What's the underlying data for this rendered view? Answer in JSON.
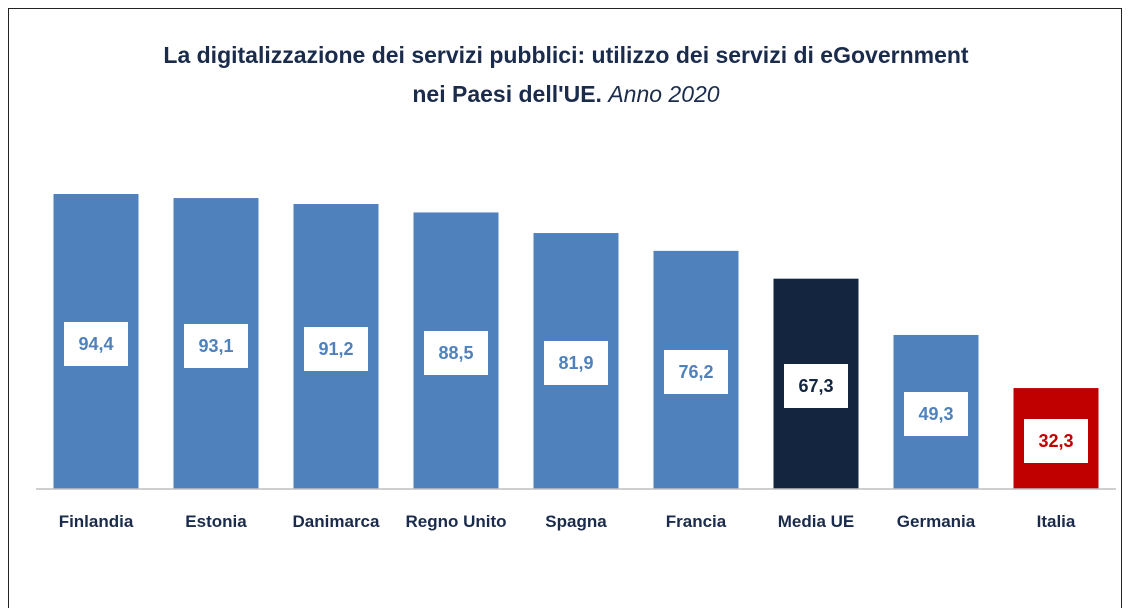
{
  "chart_data": {
    "type": "bar",
    "title": "La digitalizzazione dei servizi pubblici: utilizzo dei servizi di eGovernment nei Paesi dell'UE.",
    "subtitle": "Anno 2020",
    "categories": [
      "Finlandia",
      "Estonia",
      "Danimarca",
      "Regno Unito",
      "Spagna",
      "Francia",
      "Media UE",
      "Germania",
      "Italia"
    ],
    "values": [
      94.4,
      93.1,
      91.2,
      88.5,
      81.9,
      76.2,
      67.3,
      49.3,
      32.3
    ],
    "value_labels": [
      "94,4",
      "93,1",
      "91,2",
      "88,5",
      "81,9",
      "76,2",
      "67,3",
      "49,3",
      "32,3"
    ],
    "colors": [
      "#4f81bd",
      "#4f81bd",
      "#4f81bd",
      "#4f81bd",
      "#4f81bd",
      "#4f81bd",
      "#13253f",
      "#4f81bd",
      "#c00000"
    ],
    "ylim": [
      0,
      100
    ]
  }
}
